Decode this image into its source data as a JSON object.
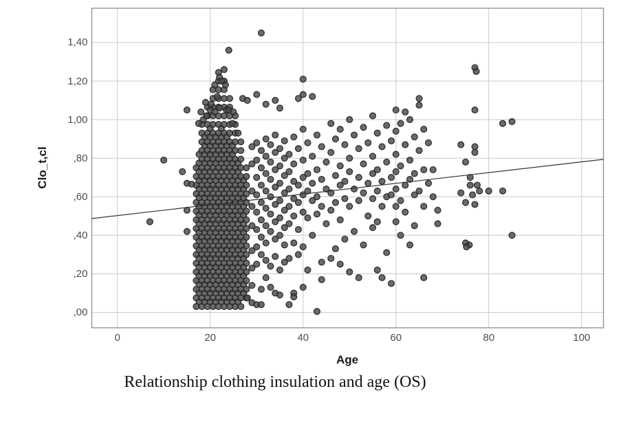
{
  "figure": {
    "caption": "Relationship clothing insulation and age (OS)"
  },
  "chart_data": {
    "type": "scatter",
    "title": "Relationship clothing insulation and age (OS)",
    "xlabel": "Age",
    "ylabel": "Clo_t,cl",
    "xlim": [
      -5.5,
      104.7
    ],
    "ylim": [
      -0.08,
      1.578
    ],
    "grid": true,
    "legend": "none",
    "x_ticks": {
      "values": [
        0,
        20,
        40,
        60,
        80,
        100
      ],
      "labels": [
        "0",
        "20",
        "40",
        "60",
        "80",
        "100"
      ]
    },
    "y_ticks": {
      "values": [
        1.4,
        1.2,
        1.0,
        0.8,
        0.6,
        0.4,
        0.2,
        0.0
      ],
      "labels": [
        "1,40",
        "1,20",
        "1,00",
        ",80",
        ",60",
        ",40",
        ",20",
        ",00"
      ]
    },
    "fit_line": {
      "x_start": -5.5,
      "y_start": 0.487,
      "x_end": 104.7,
      "y_end": 0.794
    },
    "marker": {
      "radius": 4.4,
      "fill": "#4a4a4a",
      "stroke": "#212121"
    },
    "colors": {
      "gridline": "#c9c9c9",
      "frame": "#8c8c8c",
      "fit_line": "#333333",
      "tick_label": "#4d4d4d",
      "axis_title": "#1a1a1a",
      "caption": "#111111",
      "background": "#ffffff"
    },
    "dense_columns_note": "Heavily overplotted band ages ~17-28; points quantized, expanded as columns clo_from..clo_to by step.",
    "dense_columns": [
      {
        "age": 17.0,
        "clo_from": 0.03,
        "clo_to": 0.75,
        "step": 0.045
      },
      {
        "age": 17.6,
        "clo_from": 0.055,
        "clo_to": 0.82,
        "step": 0.045
      },
      {
        "age": 18.2,
        "clo_from": 0.03,
        "clo_to": 0.98,
        "step": 0.045
      },
      {
        "age": 18.8,
        "clo_from": 0.055,
        "clo_to": 0.91,
        "step": 0.045
      },
      {
        "age": 19.4,
        "clo_from": 0.03,
        "clo_to": 1.07,
        "step": 0.045
      },
      {
        "age": 20.0,
        "clo_from": 0.055,
        "clo_to": 0.96,
        "step": 0.045
      },
      {
        "age": 20.6,
        "clo_from": 0.03,
        "clo_to": 1.16,
        "step": 0.045
      },
      {
        "age": 21.2,
        "clo_from": 0.055,
        "clo_to": 0.93,
        "step": 0.045
      },
      {
        "age": 21.8,
        "clo_from": 0.03,
        "clo_to": 1.25,
        "step": 0.045
      },
      {
        "age": 22.4,
        "clo_from": 0.055,
        "clo_to": 0.96,
        "step": 0.045
      },
      {
        "age": 23.0,
        "clo_from": 0.03,
        "clo_to": 1.21,
        "step": 0.045
      },
      {
        "age": 23.6,
        "clo_from": 0.055,
        "clo_to": 0.91,
        "step": 0.045
      },
      {
        "age": 24.2,
        "clo_from": 0.03,
        "clo_to": 1.12,
        "step": 0.045
      },
      {
        "age": 24.8,
        "clo_from": 0.055,
        "clo_to": 0.87,
        "step": 0.045
      },
      {
        "age": 25.4,
        "clo_from": 0.03,
        "clo_to": 1.03,
        "step": 0.045
      },
      {
        "age": 26.0,
        "clo_from": 0.055,
        "clo_to": 0.78,
        "step": 0.045
      },
      {
        "age": 26.6,
        "clo_from": 0.03,
        "clo_to": 0.89,
        "step": 0.045
      },
      {
        "age": 27.2,
        "clo_from": 0.1,
        "clo_to": 0.69,
        "step": 0.045
      },
      {
        "age": 27.8,
        "clo_from": 0.075,
        "clo_to": 0.75,
        "step": 0.045
      }
    ],
    "points": [
      [
        7,
        0.47
      ],
      [
        10,
        0.79
      ],
      [
        14,
        0.73
      ],
      [
        15,
        1.05
      ],
      [
        15,
        0.67
      ],
      [
        16,
        0.665
      ],
      [
        15,
        0.53
      ],
      [
        15,
        0.42
      ],
      [
        17.5,
        0.98
      ],
      [
        18,
        1.04
      ],
      [
        18.5,
        1.0
      ],
      [
        19,
        1.09
      ],
      [
        19.2,
        1.02
      ],
      [
        20,
        1.05
      ],
      [
        20.2,
        1.08
      ],
      [
        21,
        1.04
      ],
      [
        21,
        1.18
      ],
      [
        21.5,
        1.12
      ],
      [
        22,
        1.06
      ],
      [
        22,
        1.22
      ],
      [
        22.5,
        1.2
      ],
      [
        23,
        1.26
      ],
      [
        23.3,
        1.18
      ],
      [
        23.5,
        1.05
      ],
      [
        24,
        1.05
      ],
      [
        24,
        1.36
      ],
      [
        24.8,
        0.98
      ],
      [
        25,
        1.04
      ],
      [
        26,
        0.93
      ],
      [
        31,
        1.45
      ],
      [
        27,
        1.11
      ],
      [
        28,
        1.1
      ],
      [
        30,
        1.13
      ],
      [
        32,
        1.08
      ],
      [
        34,
        1.1
      ],
      [
        35,
        1.06
      ],
      [
        39,
        1.11
      ],
      [
        40,
        1.21
      ],
      [
        40,
        1.13
      ],
      [
        42,
        1.12
      ],
      [
        28,
        0.075
      ],
      [
        29,
        0.86
      ],
      [
        29,
        0.77
      ],
      [
        29,
        0.63
      ],
      [
        29,
        0.55
      ],
      [
        29,
        0.45
      ],
      [
        29,
        0.32
      ],
      [
        29,
        0.23
      ],
      [
        29,
        0.14
      ],
      [
        29,
        0.05
      ],
      [
        30,
        0.88
      ],
      [
        30,
        0.79
      ],
      [
        30,
        0.7
      ],
      [
        30,
        0.61
      ],
      [
        30,
        0.52
      ],
      [
        30,
        0.43
      ],
      [
        30,
        0.34
      ],
      [
        30,
        0.25
      ],
      [
        30,
        0.04
      ],
      [
        31,
        0.84
      ],
      [
        31,
        0.75
      ],
      [
        31,
        0.66
      ],
      [
        31,
        0.57
      ],
      [
        31,
        0.48
      ],
      [
        31,
        0.39
      ],
      [
        31,
        0.3
      ],
      [
        31,
        0.12
      ],
      [
        31,
        0.04
      ],
      [
        32,
        0.9
      ],
      [
        32,
        0.81
      ],
      [
        32,
        0.72
      ],
      [
        32,
        0.63
      ],
      [
        32,
        0.54
      ],
      [
        32,
        0.45
      ],
      [
        32,
        0.36
      ],
      [
        32,
        0.27
      ],
      [
        32,
        0.18
      ],
      [
        33,
        0.87
      ],
      [
        33,
        0.78
      ],
      [
        33,
        0.69
      ],
      [
        33,
        0.6
      ],
      [
        33,
        0.51
      ],
      [
        33,
        0.42
      ],
      [
        33,
        0.24
      ],
      [
        33,
        0.13
      ],
      [
        34,
        0.92
      ],
      [
        34,
        0.83
      ],
      [
        34,
        0.74
      ],
      [
        34,
        0.65
      ],
      [
        34,
        0.56
      ],
      [
        34,
        0.47
      ],
      [
        34,
        0.38
      ],
      [
        34,
        0.29
      ],
      [
        34,
        0.1
      ],
      [
        35,
        0.85
      ],
      [
        35,
        0.76
      ],
      [
        35,
        0.67
      ],
      [
        35,
        0.58
      ],
      [
        35,
        0.49
      ],
      [
        35,
        0.4
      ],
      [
        35,
        0.22
      ],
      [
        35,
        0.09
      ],
      [
        36,
        0.89
      ],
      [
        36,
        0.8
      ],
      [
        36,
        0.71
      ],
      [
        36,
        0.62
      ],
      [
        36,
        0.53
      ],
      [
        36,
        0.44
      ],
      [
        36,
        0.35
      ],
      [
        36,
        0.26
      ],
      [
        37,
        0.82
      ],
      [
        37,
        0.73
      ],
      [
        37,
        0.64
      ],
      [
        37,
        0.55
      ],
      [
        37,
        0.46
      ],
      [
        37,
        0.28
      ],
      [
        37,
        0.04
      ],
      [
        38,
        0.91
      ],
      [
        38,
        0.77
      ],
      [
        38,
        0.68
      ],
      [
        38,
        0.59
      ],
      [
        38,
        0.5
      ],
      [
        38,
        0.36
      ],
      [
        38,
        0.1
      ],
      [
        38,
        0.08
      ],
      [
        39,
        0.85
      ],
      [
        39,
        0.66
      ],
      [
        39,
        0.57
      ],
      [
        39,
        0.43
      ],
      [
        39,
        0.3
      ],
      [
        40,
        0.95
      ],
      [
        40,
        0.79
      ],
      [
        40,
        0.7
      ],
      [
        40,
        0.61
      ],
      [
        40,
        0.52
      ],
      [
        40,
        0.34
      ],
      [
        40,
        0.13
      ],
      [
        41,
        0.88
      ],
      [
        41,
        0.72
      ],
      [
        41,
        0.63
      ],
      [
        41,
        0.49
      ],
      [
        41,
        0.22
      ],
      [
        42,
        0.81
      ],
      [
        42,
        0.67
      ],
      [
        42,
        0.58
      ],
      [
        42,
        0.4
      ],
      [
        43,
        0.92
      ],
      [
        43,
        0.74
      ],
      [
        43,
        0.6
      ],
      [
        43,
        0.51
      ],
      [
        43,
        0.005
      ],
      [
        44,
        0.86
      ],
      [
        44,
        0.69
      ],
      [
        44,
        0.55
      ],
      [
        44,
        0.26
      ],
      [
        44,
        0.17
      ],
      [
        45,
        0.78
      ],
      [
        45,
        0.64
      ],
      [
        45,
        0.46
      ],
      [
        46,
        0.98
      ],
      [
        46,
        0.83
      ],
      [
        46,
        0.62
      ],
      [
        46,
        0.53
      ],
      [
        46,
        0.28
      ],
      [
        47,
        0.9
      ],
      [
        47,
        0.71
      ],
      [
        47,
        0.57
      ],
      [
        47,
        0.33
      ],
      [
        48,
        0.95
      ],
      [
        48,
        0.76
      ],
      [
        48,
        0.66
      ],
      [
        48,
        0.48
      ],
      [
        48,
        0.25
      ],
      [
        49,
        0.87
      ],
      [
        49,
        0.68
      ],
      [
        49,
        0.59
      ],
      [
        49,
        0.38
      ],
      [
        50,
        1.0
      ],
      [
        50,
        0.8
      ],
      [
        50,
        0.73
      ],
      [
        50,
        0.55
      ],
      [
        50,
        0.21
      ],
      [
        51,
        0.92
      ],
      [
        51,
        0.64
      ],
      [
        51,
        0.42
      ],
      [
        52,
        0.85
      ],
      [
        52,
        0.7
      ],
      [
        52,
        0.58
      ],
      [
        52,
        0.18
      ],
      [
        53,
        0.96
      ],
      [
        53,
        0.77
      ],
      [
        53,
        0.62
      ],
      [
        53,
        0.35
      ],
      [
        54,
        0.88
      ],
      [
        54,
        0.67
      ],
      [
        54,
        0.5
      ],
      [
        55,
        1.02
      ],
      [
        55,
        0.81
      ],
      [
        55,
        0.72
      ],
      [
        55,
        0.59
      ],
      [
        55,
        0.44
      ],
      [
        56,
        0.93
      ],
      [
        56,
        0.74
      ],
      [
        56,
        0.63
      ],
      [
        56,
        0.47
      ],
      [
        56,
        0.22
      ],
      [
        57,
        0.86
      ],
      [
        57,
        0.68
      ],
      [
        57,
        0.55
      ],
      [
        57,
        0.18
      ],
      [
        58,
        0.97
      ],
      [
        58,
        0.78
      ],
      [
        58,
        0.6
      ],
      [
        58,
        0.31
      ],
      [
        59,
        0.89
      ],
      [
        59,
        0.7
      ],
      [
        59,
        0.61
      ],
      [
        59,
        0.15
      ],
      [
        60,
        1.05
      ],
      [
        60,
        0.94
      ],
      [
        60,
        0.82
      ],
      [
        60,
        0.73
      ],
      [
        60,
        0.64
      ],
      [
        60,
        0.55
      ],
      [
        60,
        0.47
      ],
      [
        61,
        0.98
      ],
      [
        61,
        0.76
      ],
      [
        61,
        0.58
      ],
      [
        61,
        0.4
      ],
      [
        62,
        1.04
      ],
      [
        62,
        0.87
      ],
      [
        62,
        0.66
      ],
      [
        62,
        0.52
      ],
      [
        63,
        1.0
      ],
      [
        63,
        0.79
      ],
      [
        63,
        0.69
      ],
      [
        63,
        0.35
      ],
      [
        64,
        0.91
      ],
      [
        64,
        0.72
      ],
      [
        64,
        0.61
      ],
      [
        64,
        0.45
      ],
      [
        65,
        1.11
      ],
      [
        65,
        1.075
      ],
      [
        65,
        0.84
      ],
      [
        65,
        0.63
      ],
      [
        66,
        0.95
      ],
      [
        66,
        0.74
      ],
      [
        66,
        0.55
      ],
      [
        66,
        0.18
      ],
      [
        67,
        0.88
      ],
      [
        67,
        0.67
      ],
      [
        68,
        0.74
      ],
      [
        68,
        0.6
      ],
      [
        69,
        0.53
      ],
      [
        69,
        0.46
      ],
      [
        74,
        0.87
      ],
      [
        74,
        0.62
      ],
      [
        75,
        0.78
      ],
      [
        75,
        0.57
      ],
      [
        75,
        0.36
      ],
      [
        75.8,
        0.35
      ],
      [
        75.2,
        0.34
      ],
      [
        76,
        0.7
      ],
      [
        76,
        0.66
      ],
      [
        76.5,
        0.61
      ],
      [
        77,
        1.27
      ],
      [
        77.3,
        1.25
      ],
      [
        77,
        1.05
      ],
      [
        77,
        0.86
      ],
      [
        77,
        0.83
      ],
      [
        77.5,
        0.66
      ],
      [
        77,
        0.56
      ],
      [
        78,
        0.63
      ],
      [
        80,
        0.63
      ],
      [
        83,
        0.63
      ],
      [
        83,
        0.98
      ],
      [
        85,
        0.99
      ],
      [
        85,
        0.4
      ]
    ]
  }
}
